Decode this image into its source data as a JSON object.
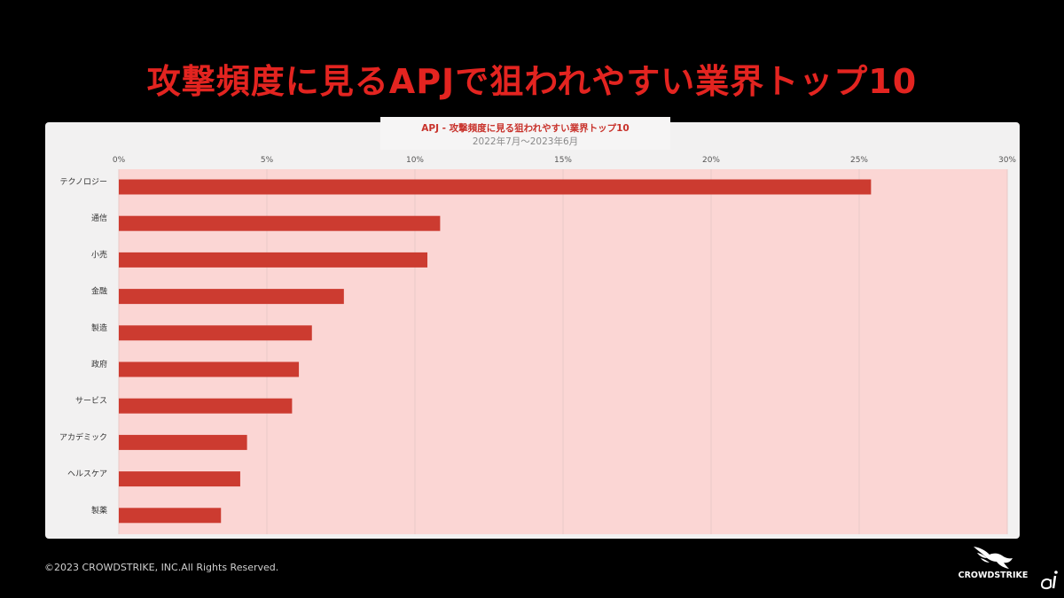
{
  "slide": {
    "title": "攻撃頻度に見るAPJで狙われやすい業界トップ10",
    "title_color": "#e32420",
    "background": "#000000",
    "copyright": "©2023 CROWDSTRIKE, INC.All Rights Reserved.",
    "brand_name": "CROWDSTRIKE",
    "brand_logo": "falcon-logo-icon",
    "publisher_logo": "publisher-ai-logo-icon"
  },
  "chart_data": {
    "type": "bar",
    "orientation": "horizontal",
    "title": "APJ - 攻撃頻度に見る狙われやすい業界トップ10",
    "subtitle": "2022年7月～2023年6月",
    "categories": [
      "テクノロジー",
      "通信",
      "小売",
      "金融",
      "製造",
      "政府",
      "サービス",
      "アカデミック",
      "ヘルスケア",
      "製薬"
    ],
    "values": [
      25.4,
      10.85,
      10.42,
      7.6,
      6.52,
      6.08,
      5.85,
      4.33,
      4.1,
      3.45
    ],
    "unit": "%",
    "xlim": [
      0,
      30
    ],
    "xticks": [
      "0%",
      "5%",
      "10%",
      "15%",
      "20%",
      "25%",
      "30%"
    ],
    "xaxis_position": "top",
    "grid": true,
    "legend": "none",
    "colors": {
      "bar": "#cc3b30",
      "plot_background": "#fbd6d4",
      "panel_background": "#f2f1f1",
      "title": "#c8322b",
      "subtitle": "#8a8a8a"
    }
  }
}
